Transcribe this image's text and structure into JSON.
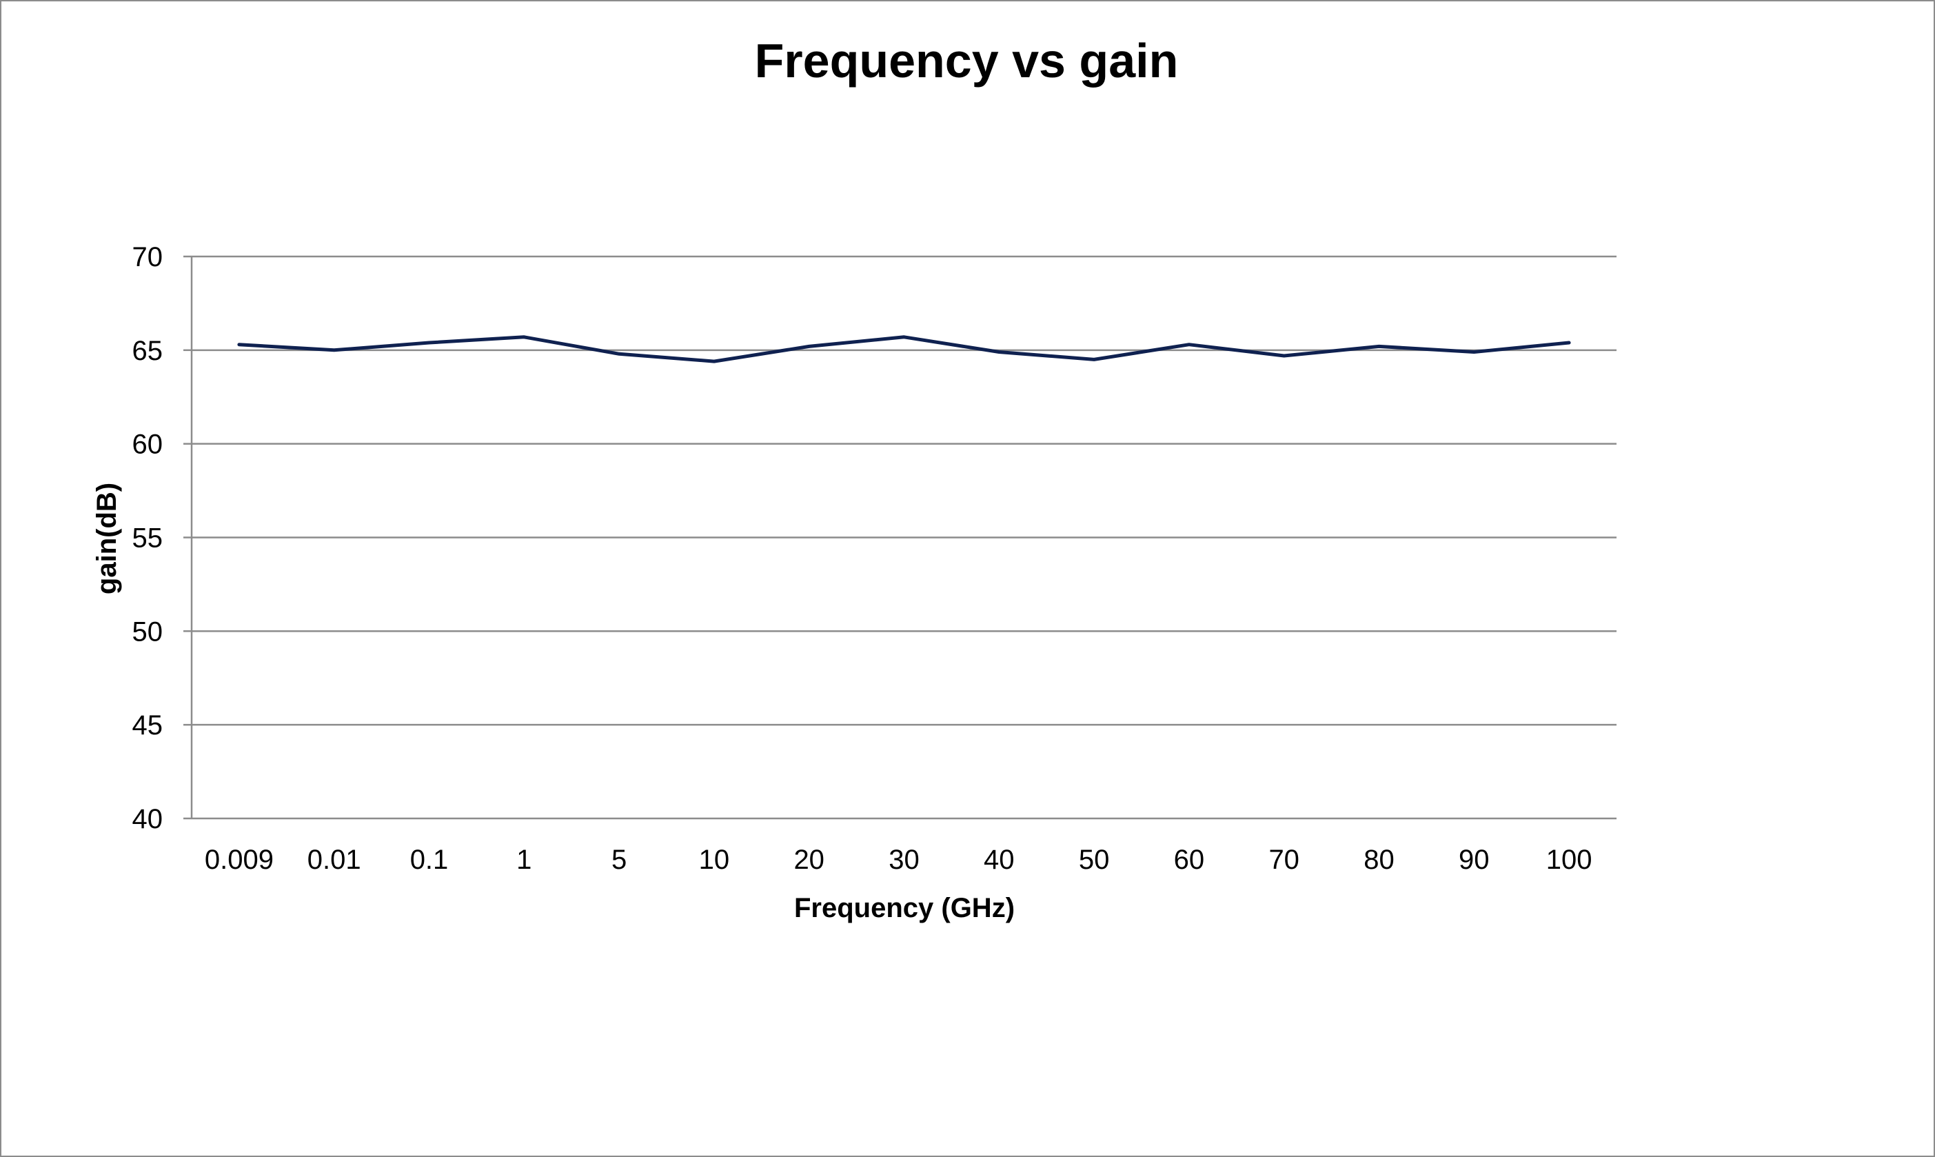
{
  "chart_data": {
    "type": "line",
    "title": "Frequency vs gain",
    "xlabel": "Frequency (GHz)",
    "ylabel": "gain(dB)",
    "categories": [
      "0.009",
      "0.01",
      "0.1",
      "1",
      "5",
      "10",
      "20",
      "30",
      "40",
      "50",
      "60",
      "70",
      "80",
      "90",
      "100"
    ],
    "series": [
      {
        "values": [
          65.3,
          65.0,
          65.4,
          65.7,
          64.8,
          64.4,
          65.2,
          65.7,
          64.9,
          64.5,
          65.3,
          64.7,
          65.2,
          64.9,
          65.4
        ],
        "color": "#0f2150"
      }
    ],
    "ylim": [
      40,
      70
    ],
    "yticks": [
      40,
      45,
      50,
      55,
      60,
      65,
      70
    ],
    "grid": true,
    "legend": "none"
  }
}
